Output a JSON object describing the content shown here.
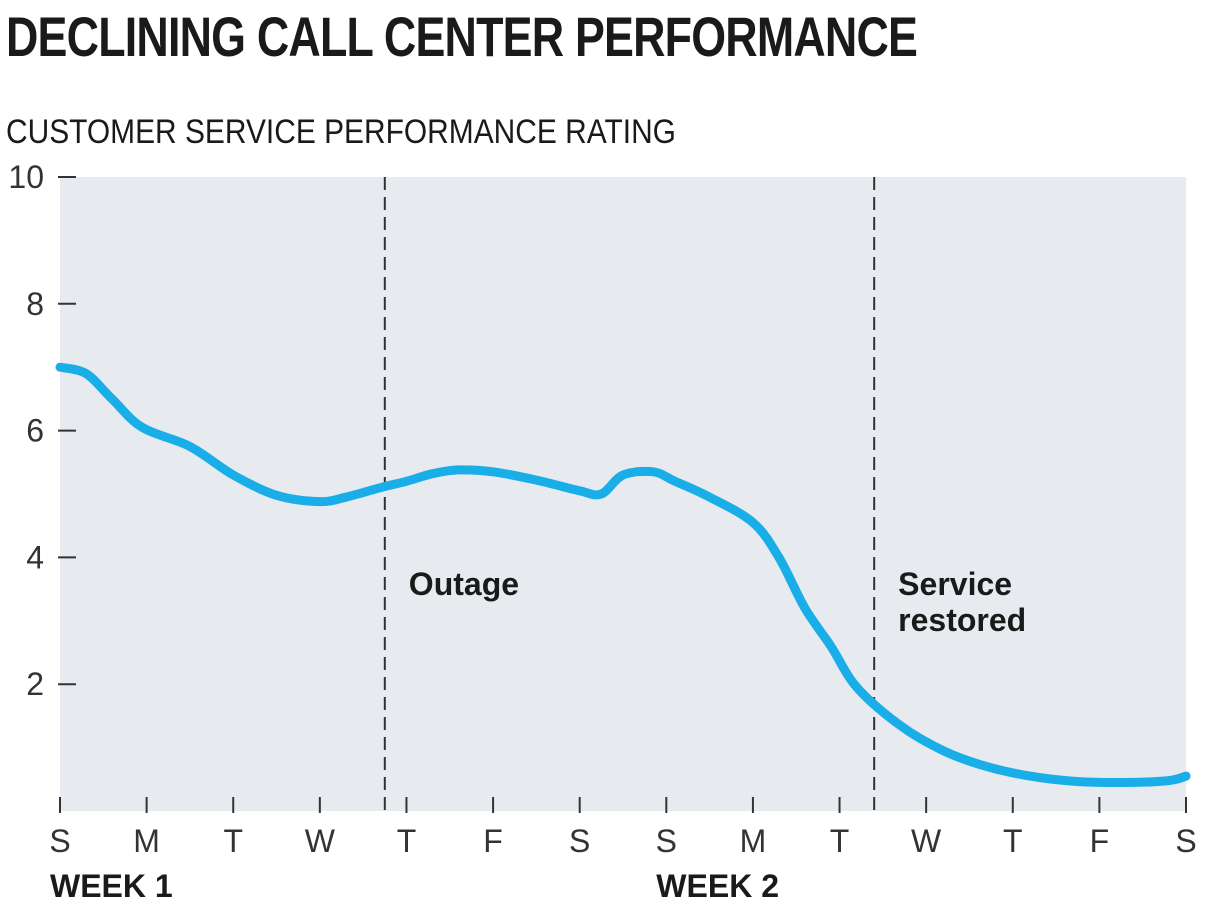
{
  "title": "DECLINING CALL CENTER PERFORMANCE",
  "subtitle": "CUSTOMER SERVICE PERFORMANCE RATING",
  "colors": {
    "line": "#1aaee8",
    "plot_background": "#e7eaee",
    "text": "#1a1a1a",
    "marker_line": "#333333"
  },
  "chart_data": {
    "type": "line",
    "title": "DECLINING CALL CENTER PERFORMANCE",
    "ylabel": "CUSTOMER SERVICE PERFORMANCE RATING",
    "xlabel": "",
    "ylim": [
      0,
      10
    ],
    "yticks": [
      2,
      4,
      6,
      8,
      10
    ],
    "categories": [
      "S",
      "M",
      "T",
      "W",
      "T",
      "F",
      "S",
      "S",
      "M",
      "T",
      "W",
      "T",
      "F",
      "S"
    ],
    "week_labels": [
      {
        "label": "WEEK 1",
        "start_index": 0
      },
      {
        "label": "WEEK 2",
        "start_index": 7
      }
    ],
    "series": [
      {
        "x": [
          0,
          0.3,
          0.6,
          0.95,
          1.5,
          2,
          2.5,
          3,
          3.3,
          3.7,
          4,
          4.3,
          4.6,
          5,
          5.5,
          6,
          6.25,
          6.5,
          6.85,
          7.1,
          7.5,
          8,
          8.3,
          8.6,
          8.9,
          9.2,
          9.7,
          10.2,
          10.7,
          11.2,
          11.7,
          12.3,
          12.8,
          13
        ],
        "values": [
          7.0,
          6.9,
          6.5,
          6.05,
          5.75,
          5.3,
          4.98,
          4.88,
          4.95,
          5.1,
          5.2,
          5.32,
          5.38,
          5.35,
          5.22,
          5.05,
          5.0,
          5.3,
          5.35,
          5.2,
          4.95,
          4.55,
          4.0,
          3.2,
          2.6,
          1.95,
          1.35,
          0.95,
          0.7,
          0.55,
          0.47,
          0.45,
          0.48,
          0.55
        ]
      }
    ],
    "annotations": [
      {
        "label": "Outage",
        "x": 3.75
      },
      {
        "label": "Service restored",
        "x": 9.4
      }
    ],
    "grid": false
  }
}
